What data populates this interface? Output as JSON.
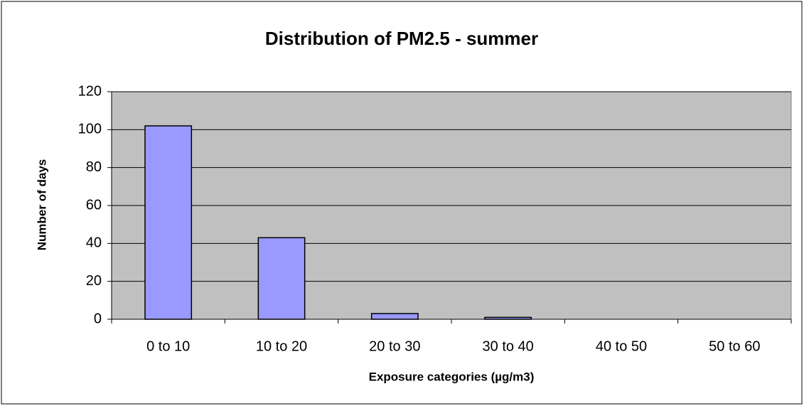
{
  "chart_data": {
    "type": "bar",
    "title": "Distribution of PM2.5 - summer",
    "x_label": "Exposure categories (µg/m3)",
    "y_label": "Number of days",
    "categories": [
      "0 to 10",
      "10 to 20",
      "20 to 30",
      "30 to 40",
      "40 to 50",
      "50 to 60"
    ],
    "values": [
      102,
      43,
      3,
      1,
      0,
      0
    ],
    "color": "#9999ff",
    "ylim": [
      0,
      120
    ],
    "yticks": [
      0,
      20,
      40,
      60,
      80,
      100,
      120
    ],
    "grid": true
  }
}
